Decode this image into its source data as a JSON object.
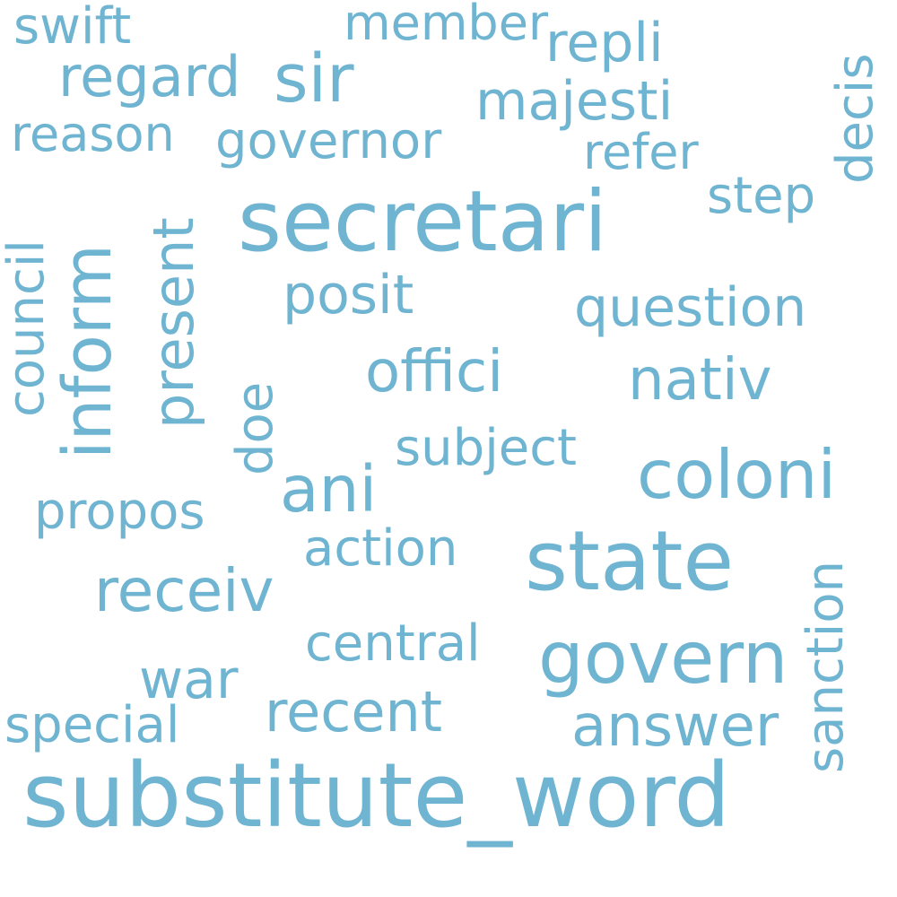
{
  "word_cloud": {
    "color": "#6fb4d1",
    "background": "#ffffff",
    "words": {
      "secretari": "secretari",
      "state": "state",
      "substitute_word": "substitute_word",
      "coloni": "coloni",
      "govern": "govern",
      "ani": "ani",
      "sir": "sir",
      "regard": "regard",
      "receiv": "receiv",
      "answer": "answer",
      "recent": "recent",
      "nativ": "nativ",
      "offici": "offici",
      "question": "question",
      "posit": "posit",
      "repli": "repli",
      "majesti": "majesti",
      "governor": "governor",
      "refer": "refer",
      "reason": "reason",
      "swift": "swift",
      "member": "member",
      "step": "step",
      "subject": "subject",
      "propos": "propos",
      "action": "action",
      "central": "central",
      "war": "war",
      "special": "special",
      "decis": "decis",
      "council": "council",
      "inform": "inform",
      "present": "present",
      "doe": "doe",
      "sanction": "sanction"
    }
  }
}
